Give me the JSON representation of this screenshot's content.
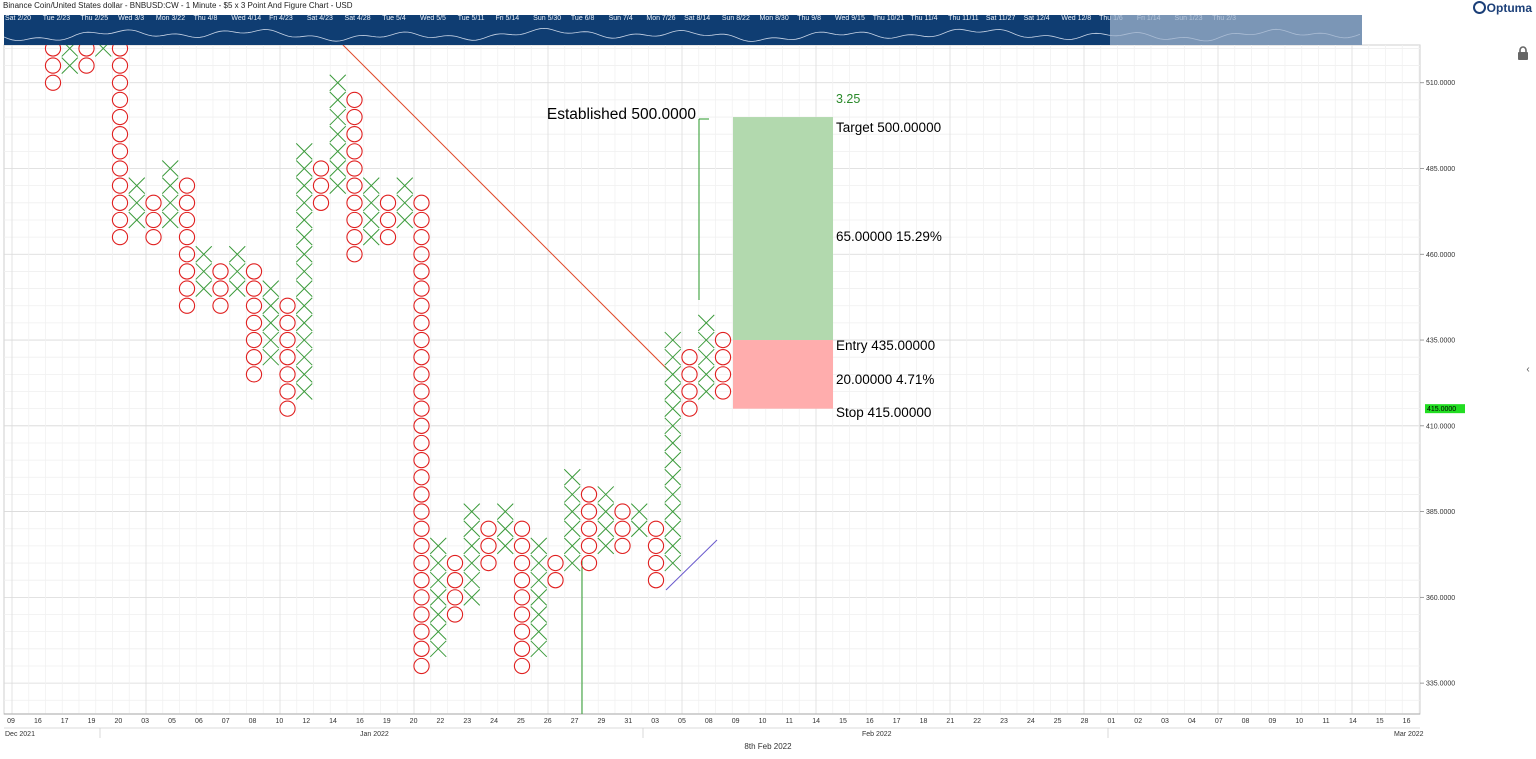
{
  "header": {
    "title": "Binance Coin/United States dollar - BNBUSD:CW - 1 Minute - $5 x 3 Point And Figure Chart - USD",
    "logo": "Optuma"
  },
  "navigator": {
    "labels": [
      "Sat 2/20",
      "Tue 2/23",
      "Thu 2/25",
      "Wed 3/3",
      "Mon 3/22",
      "Thu 4/8",
      "Wed 4/14",
      "Fri 4/23",
      "Sat 4/23",
      "Sat 4/28",
      "Tue 5/4",
      "Wed 5/5",
      "Tue 5/11",
      "Fri 5/14",
      "Sun 5/30",
      "Tue 6/8",
      "Sun 7/4",
      "Mon 7/26",
      "Sat 8/14",
      "Sun 8/22",
      "Mon 8/30",
      "Thu 9/8",
      "Wed 9/15",
      "Thu 10/21",
      "Thu 11/4",
      "Thu 11/11",
      "Sat 11/27",
      "Sat 12/4",
      "Wed 12/8",
      "Thu 1/6",
      "Fri 1/14",
      "Sun 1/23",
      "Thu 2/3"
    ]
  },
  "footer": {
    "center_date": "8th Feb 2022"
  },
  "colors": {
    "x_mark": "#3a9a3a",
    "o_mark": "#e02020",
    "trendline": "#e04a2a",
    "target_zone": "#b2d9ae",
    "stop_zone": "#ffadad",
    "price_badge": "#22dd22",
    "navigator": "#0f3d72"
  },
  "chart_data": {
    "type": "point_and_figure",
    "box_size": 5,
    "reversal": 3,
    "y_axis": {
      "range": [
        326,
        521
      ],
      "tick_labels": [
        "510.0000",
        "485.0000",
        "460.0000",
        "435.0000",
        "410.0000",
        "385.0000",
        "360.0000",
        "335.0000"
      ],
      "current_price": "415.0000"
    },
    "x_axis": {
      "labels": [
        "09",
        "16",
        "17",
        "19",
        "20",
        "03",
        "05",
        "06",
        "07",
        "08",
        "10",
        "12",
        "14",
        "16",
        "19",
        "20",
        "22",
        "23",
        "24",
        "25",
        "26",
        "27",
        "29",
        "31",
        "03",
        "05",
        "08",
        "09",
        "10",
        "11",
        "14",
        "15",
        "16",
        "17",
        "18",
        "21",
        "22",
        "23",
        "24",
        "25",
        "28",
        "01",
        "02",
        "03",
        "04",
        "07",
        "08",
        "09",
        "10",
        "11",
        "14",
        "15",
        "16"
      ],
      "months": [
        "Dec 2021",
        "Jan 2022",
        "Feb 2022",
        "Mar 2022"
      ]
    },
    "columns": [
      {
        "t": "O",
        "lo": 510,
        "hi": 525
      },
      {
        "t": "X",
        "lo": 515,
        "hi": 525
      },
      {
        "t": "O",
        "lo": 515,
        "hi": 525
      },
      {
        "t": "X",
        "lo": 520,
        "hi": 525
      },
      {
        "t": "O",
        "lo": 465,
        "hi": 525
      },
      {
        "t": "X",
        "lo": 470,
        "hi": 480
      },
      {
        "t": "O",
        "lo": 465,
        "hi": 475
      },
      {
        "t": "X",
        "lo": 470,
        "hi": 485
      },
      {
        "t": "O",
        "lo": 445,
        "hi": 480
      },
      {
        "t": "X",
        "lo": 450,
        "hi": 460
      },
      {
        "t": "O",
        "lo": 445,
        "hi": 455
      },
      {
        "t": "X",
        "lo": 450,
        "hi": 460
      },
      {
        "t": "O",
        "lo": 425,
        "hi": 455
      },
      {
        "t": "X",
        "lo": 430,
        "hi": 450
      },
      {
        "t": "O",
        "lo": 415,
        "hi": 445
      },
      {
        "t": "X",
        "lo": 420,
        "hi": 490
      },
      {
        "t": "O",
        "lo": 475,
        "hi": 485
      },
      {
        "t": "X",
        "lo": 480,
        "hi": 510
      },
      {
        "t": "O",
        "lo": 460,
        "hi": 505
      },
      {
        "t": "X",
        "lo": 465,
        "hi": 480
      },
      {
        "t": "O",
        "lo": 465,
        "hi": 475
      },
      {
        "t": "X",
        "lo": 470,
        "hi": 480
      },
      {
        "t": "O",
        "lo": 340,
        "hi": 475
      },
      {
        "t": "X",
        "lo": 345,
        "hi": 375
      },
      {
        "t": "O",
        "lo": 355,
        "hi": 370
      },
      {
        "t": "X",
        "lo": 360,
        "hi": 385
      },
      {
        "t": "O",
        "lo": 370,
        "hi": 380
      },
      {
        "t": "X",
        "lo": 375,
        "hi": 385
      },
      {
        "t": "O",
        "lo": 340,
        "hi": 380
      },
      {
        "t": "X",
        "lo": 345,
        "hi": 375
      },
      {
        "t": "O",
        "lo": 365,
        "hi": 370
      },
      {
        "t": "X",
        "lo": 370,
        "hi": 395
      },
      {
        "t": "O",
        "lo": 370,
        "hi": 390
      },
      {
        "t": "X",
        "lo": 375,
        "hi": 390
      },
      {
        "t": "O",
        "lo": 375,
        "hi": 385
      },
      {
        "t": "X",
        "lo": 380,
        "hi": 385
      },
      {
        "t": "O",
        "lo": 365,
        "hi": 380
      },
      {
        "t": "X",
        "lo": 370,
        "hi": 435
      },
      {
        "t": "O",
        "lo": 415,
        "hi": 430
      },
      {
        "t": "X",
        "lo": 420,
        "hi": 440
      },
      {
        "t": "O",
        "lo": 420,
        "hi": 435
      }
    ],
    "trade_setup": {
      "established_label": "Established 500.0000",
      "target_label": "Target  500.00000",
      "reward_label": "65.00000   15.29%",
      "entry_label": "Entry  435.00000",
      "risk_label": "20.00000   4.71%",
      "stop_label": "Stop  415.00000",
      "ratio_label": "3.25",
      "target": 500,
      "entry": 435,
      "stop": 415
    }
  }
}
